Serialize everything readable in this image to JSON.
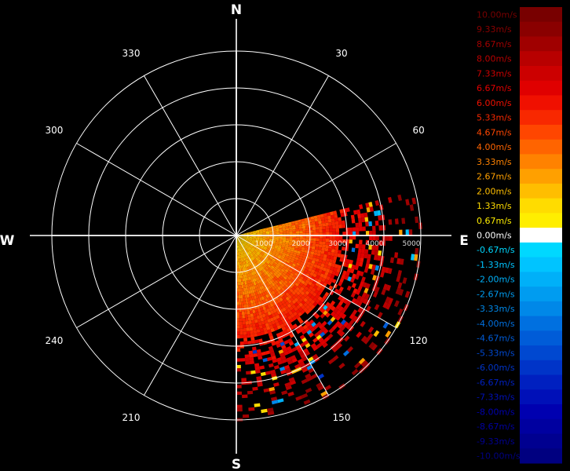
{
  "chart_data": {
    "type": "heatmap",
    "projection": "polar-ppi",
    "compass": {
      "north": "N",
      "east": "E",
      "south": "S",
      "west": "W"
    },
    "azimuth_labels": [
      {
        "angle": 30,
        "text": "30"
      },
      {
        "angle": 60,
        "text": "60"
      },
      {
        "angle": 120,
        "text": "120"
      },
      {
        "angle": 150,
        "text": "150"
      },
      {
        "angle": 210,
        "text": "210"
      },
      {
        "angle": 240,
        "text": "240"
      },
      {
        "angle": 300,
        "text": "300"
      },
      {
        "angle": 330,
        "text": "330"
      }
    ],
    "range_rings": [
      1000,
      2000,
      3000,
      4000,
      5000
    ],
    "range_labels": [
      "1000",
      "2000",
      "3000",
      "4000",
      "5000"
    ],
    "spoke_step_deg": 30,
    "data_sector": {
      "azimuth_start": 76,
      "azimuth_end": 180,
      "max_range": 5000
    },
    "color_scale": {
      "labels": [
        "10.00m/s",
        "9.33m/s",
        "8.67m/s",
        "8.00m/s",
        "7.33m/s",
        "6.67m/s",
        "6.00m/s",
        "5.33m/s",
        "4.67m/s",
        "4.00m/s",
        "3.33m/s",
        "2.67m/s",
        "2.00m/s",
        "1.33m/s",
        "0.67m/s",
        "0.00m/s",
        "-0.67m/s",
        "-1.33m/s",
        "-2.00m/s",
        "-2.67m/s",
        "-3.33m/s",
        "-4.00m/s",
        "-4.67m/s",
        "-5.33m/s",
        "-6.00m/s",
        "-6.67m/s",
        "-7.33m/s",
        "-8.00m/s",
        "-8.67m/s",
        "-9.33m/s",
        "-10.00m/s"
      ],
      "colors": [
        "#780000",
        "#8a0000",
        "#a00000",
        "#b80000",
        "#cc0000",
        "#e00000",
        "#f01000",
        "#f82800",
        "#ff4600",
        "#ff6400",
        "#ff8200",
        "#ffa000",
        "#ffbe00",
        "#ffdc00",
        "#ffee00",
        "#ffffff",
        "#00d8ff",
        "#00c4ff",
        "#00b0f8",
        "#009cf0",
        "#0088e8",
        "#0070e0",
        "#005cd8",
        "#0048d0",
        "#0034c8",
        "#0020c0",
        "#0010b8",
        "#0000b0",
        "#0000a0",
        "#000090",
        "#000080"
      ]
    }
  }
}
